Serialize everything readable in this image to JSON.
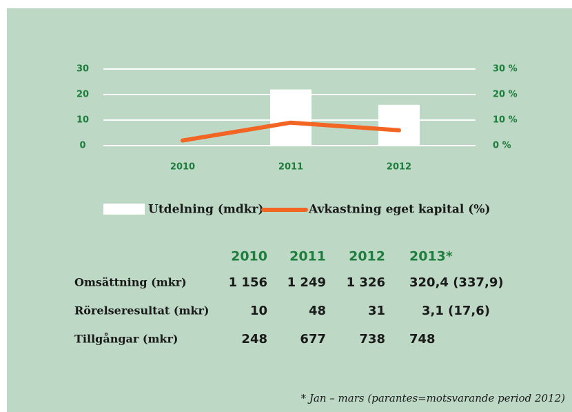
{
  "chart_data": {
    "type": "bar_line",
    "categories": [
      "2010",
      "2011",
      "2012"
    ],
    "series": [
      {
        "name": "Utdelning (mdkr)",
        "type": "bar",
        "color": "#ffffff",
        "values": [
          0,
          22,
          16
        ]
      },
      {
        "name": "Avkastning eget kapital (%)",
        "type": "line",
        "axis": "y2",
        "color": "#f26522",
        "values": [
          2,
          9,
          6
        ]
      }
    ],
    "ylim": [
      0,
      30
    ],
    "yticks": [
      0,
      10,
      20,
      30
    ],
    "y2lim": [
      0,
      30
    ],
    "y2ticks": [
      {
        "value": 0,
        "label": "0 %"
      },
      {
        "value": 10,
        "label": "10 %"
      },
      {
        "value": 20,
        "label": "20 %"
      },
      {
        "value": 30,
        "label": "30 %"
      }
    ],
    "grid": true
  },
  "table": {
    "header": [
      "2010",
      "2011",
      "2012",
      "2013*"
    ],
    "rows": [
      {
        "label": "Omsättning (mkr)",
        "values": [
          "1 156",
          "1 249",
          "1 326",
          "320,4 (337,9)"
        ]
      },
      {
        "label": "Rörelseresultat (mkr)",
        "values": [
          "10",
          "48",
          "31",
          "3,1 (17,6)"
        ]
      },
      {
        "label": "Tillgångar (mkr)",
        "values": [
          "248",
          "677",
          "738",
          "748"
        ]
      }
    ]
  },
  "footnote": "* Jan – mars (parantes=motsvarande period 2012)"
}
